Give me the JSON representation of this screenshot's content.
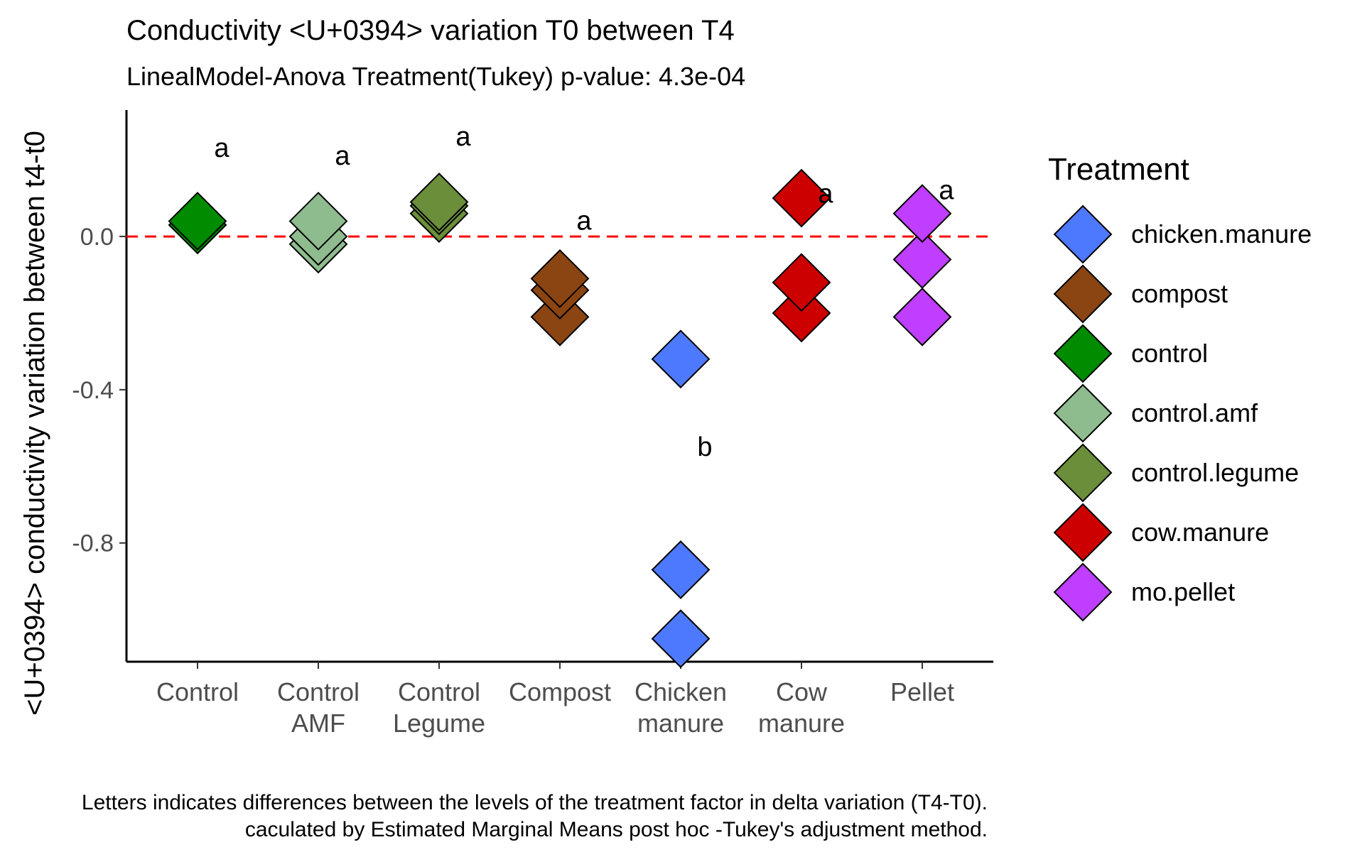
{
  "chart_data": {
    "type": "scatter",
    "title": "Conductivity <U+0394> variation T0 between T4",
    "subtitle": "LinealModel-Anova Treatment(Tukey) p-value: 4.3e-04",
    "ylabel": "<U+0394> conductivity variation between t4-t0",
    "xlabel": "",
    "ylim": [
      -1.11,
      0.33
    ],
    "yticks": [
      0.0,
      -0.4,
      -0.8
    ],
    "ytick_labels": [
      "0.0",
      "-0.4",
      "-0.8"
    ],
    "reference_line": {
      "y": 0.0,
      "color": "#ff0000",
      "style": "dashed"
    },
    "grid": false,
    "categories": [
      "Control",
      "Control AMF",
      "Control Legume",
      "Compost",
      "Chicken manure",
      "Cow manure",
      "Pellet"
    ],
    "category_labels": [
      [
        "Control"
      ],
      [
        "Control",
        "AMF"
      ],
      [
        "Control",
        "Legume"
      ],
      [
        "Compost"
      ],
      [
        "Chicken",
        "manure"
      ],
      [
        "Cow",
        "manure"
      ],
      [
        "Pellet"
      ]
    ],
    "legend": {
      "title": "Treatment",
      "position": "right",
      "entries": [
        {
          "name": "chicken.manure",
          "color": "#4d79ff"
        },
        {
          "name": "compost",
          "color": "#8b4513"
        },
        {
          "name": "control",
          "color": "#008b00"
        },
        {
          "name": "control.amf",
          "color": "#8fbc8f"
        },
        {
          "name": "control.legume",
          "color": "#6b8e3a"
        },
        {
          "name": "cow.manure",
          "color": "#cd0000"
        },
        {
          "name": "mo.pellet",
          "color": "#bf3eff"
        }
      ]
    },
    "series": [
      {
        "name": "control",
        "category": "Control",
        "values": [
          0.03,
          0.04
        ]
      },
      {
        "name": "control.amf",
        "category": "Control AMF",
        "values": [
          0.04,
          0.0,
          -0.02
        ]
      },
      {
        "name": "control.legume",
        "category": "Control Legume",
        "values": [
          0.09,
          0.06,
          0.08
        ]
      },
      {
        "name": "compost",
        "category": "Compost",
        "values": [
          -0.11,
          -0.14,
          -0.21
        ]
      },
      {
        "name": "chicken.manure",
        "category": "Chicken manure",
        "values": [
          -0.32,
          -0.87,
          -1.05
        ]
      },
      {
        "name": "cow.manure",
        "category": "Cow manure",
        "values": [
          0.1,
          -0.12,
          -0.2
        ]
      },
      {
        "name": "mo.pellet",
        "category": "Pellet",
        "values": [
          0.06,
          -0.06,
          -0.21
        ]
      }
    ],
    "significance_letters": [
      {
        "category": "Control",
        "letter": "a",
        "y": 0.23
      },
      {
        "category": "Control AMF",
        "letter": "a",
        "y": 0.21
      },
      {
        "category": "Control Legume",
        "letter": "a",
        "y": 0.26
      },
      {
        "category": "Compost",
        "letter": "a",
        "y": 0.04
      },
      {
        "category": "Chicken manure",
        "letter": "b",
        "y": -0.55
      },
      {
        "category": "Cow manure",
        "letter": "a",
        "y": 0.11
      },
      {
        "category": "Pellet",
        "letter": "a",
        "y": 0.12
      }
    ],
    "caption": [
      "Letters indicates differences between the levels of the treatment factor in delta variation (T4-T0).",
      "caculated by Estimated Marginal Means post hoc -Tukey's adjustment method."
    ]
  }
}
